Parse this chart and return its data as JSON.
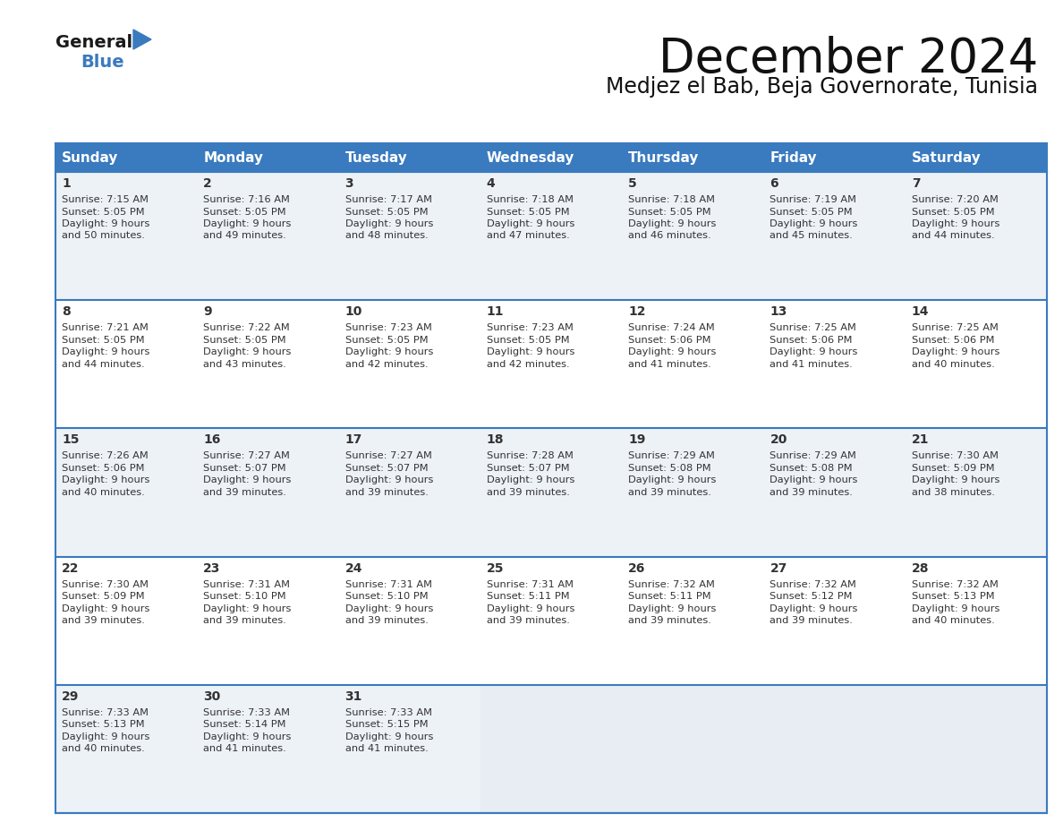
{
  "title": "December 2024",
  "subtitle": "Medjez el Bab, Beja Governorate, Tunisia",
  "header_bg": "#3a7abf",
  "header_text": "#ffffff",
  "days_of_week": [
    "Sunday",
    "Monday",
    "Tuesday",
    "Wednesday",
    "Thursday",
    "Friday",
    "Saturday"
  ],
  "row_bg_even": "#edf2f7",
  "row_bg_odd": "#ffffff",
  "grid_line_color": "#3a7abf",
  "text_color": "#333333",
  "logo_general_color": "#1a1a1a",
  "logo_blue_color": "#3a7abf",
  "cal_data": [
    {
      "day": 1,
      "col": 0,
      "row": 0,
      "sunrise": "7:15 AM",
      "sunset": "5:05 PM",
      "dl_minutes": "50"
    },
    {
      "day": 2,
      "col": 1,
      "row": 0,
      "sunrise": "7:16 AM",
      "sunset": "5:05 PM",
      "dl_minutes": "49"
    },
    {
      "day": 3,
      "col": 2,
      "row": 0,
      "sunrise": "7:17 AM",
      "sunset": "5:05 PM",
      "dl_minutes": "48"
    },
    {
      "day": 4,
      "col": 3,
      "row": 0,
      "sunrise": "7:18 AM",
      "sunset": "5:05 PM",
      "dl_minutes": "47"
    },
    {
      "day": 5,
      "col": 4,
      "row": 0,
      "sunrise": "7:18 AM",
      "sunset": "5:05 PM",
      "dl_minutes": "46"
    },
    {
      "day": 6,
      "col": 5,
      "row": 0,
      "sunrise": "7:19 AM",
      "sunset": "5:05 PM",
      "dl_minutes": "45"
    },
    {
      "day": 7,
      "col": 6,
      "row": 0,
      "sunrise": "7:20 AM",
      "sunset": "5:05 PM",
      "dl_minutes": "44"
    },
    {
      "day": 8,
      "col": 0,
      "row": 1,
      "sunrise": "7:21 AM",
      "sunset": "5:05 PM",
      "dl_minutes": "44"
    },
    {
      "day": 9,
      "col": 1,
      "row": 1,
      "sunrise": "7:22 AM",
      "sunset": "5:05 PM",
      "dl_minutes": "43"
    },
    {
      "day": 10,
      "col": 2,
      "row": 1,
      "sunrise": "7:23 AM",
      "sunset": "5:05 PM",
      "dl_minutes": "42"
    },
    {
      "day": 11,
      "col": 3,
      "row": 1,
      "sunrise": "7:23 AM",
      "sunset": "5:05 PM",
      "dl_minutes": "42"
    },
    {
      "day": 12,
      "col": 4,
      "row": 1,
      "sunrise": "7:24 AM",
      "sunset": "5:06 PM",
      "dl_minutes": "41"
    },
    {
      "day": 13,
      "col": 5,
      "row": 1,
      "sunrise": "7:25 AM",
      "sunset": "5:06 PM",
      "dl_minutes": "41"
    },
    {
      "day": 14,
      "col": 6,
      "row": 1,
      "sunrise": "7:25 AM",
      "sunset": "5:06 PM",
      "dl_minutes": "40"
    },
    {
      "day": 15,
      "col": 0,
      "row": 2,
      "sunrise": "7:26 AM",
      "sunset": "5:06 PM",
      "dl_minutes": "40"
    },
    {
      "day": 16,
      "col": 1,
      "row": 2,
      "sunrise": "7:27 AM",
      "sunset": "5:07 PM",
      "dl_minutes": "39"
    },
    {
      "day": 17,
      "col": 2,
      "row": 2,
      "sunrise": "7:27 AM",
      "sunset": "5:07 PM",
      "dl_minutes": "39"
    },
    {
      "day": 18,
      "col": 3,
      "row": 2,
      "sunrise": "7:28 AM",
      "sunset": "5:07 PM",
      "dl_minutes": "39"
    },
    {
      "day": 19,
      "col": 4,
      "row": 2,
      "sunrise": "7:29 AM",
      "sunset": "5:08 PM",
      "dl_minutes": "39"
    },
    {
      "day": 20,
      "col": 5,
      "row": 2,
      "sunrise": "7:29 AM",
      "sunset": "5:08 PM",
      "dl_minutes": "39"
    },
    {
      "day": 21,
      "col": 6,
      "row": 2,
      "sunrise": "7:30 AM",
      "sunset": "5:09 PM",
      "dl_minutes": "38"
    },
    {
      "day": 22,
      "col": 0,
      "row": 3,
      "sunrise": "7:30 AM",
      "sunset": "5:09 PM",
      "dl_minutes": "39"
    },
    {
      "day": 23,
      "col": 1,
      "row": 3,
      "sunrise": "7:31 AM",
      "sunset": "5:10 PM",
      "dl_minutes": "39"
    },
    {
      "day": 24,
      "col": 2,
      "row": 3,
      "sunrise": "7:31 AM",
      "sunset": "5:10 PM",
      "dl_minutes": "39"
    },
    {
      "day": 25,
      "col": 3,
      "row": 3,
      "sunrise": "7:31 AM",
      "sunset": "5:11 PM",
      "dl_minutes": "39"
    },
    {
      "day": 26,
      "col": 4,
      "row": 3,
      "sunrise": "7:32 AM",
      "sunset": "5:11 PM",
      "dl_minutes": "39"
    },
    {
      "day": 27,
      "col": 5,
      "row": 3,
      "sunrise": "7:32 AM",
      "sunset": "5:12 PM",
      "dl_minutes": "39"
    },
    {
      "day": 28,
      "col": 6,
      "row": 3,
      "sunrise": "7:32 AM",
      "sunset": "5:13 PM",
      "dl_minutes": "40"
    },
    {
      "day": 29,
      "col": 0,
      "row": 4,
      "sunrise": "7:33 AM",
      "sunset": "5:13 PM",
      "dl_minutes": "40"
    },
    {
      "day": 30,
      "col": 1,
      "row": 4,
      "sunrise": "7:33 AM",
      "sunset": "5:14 PM",
      "dl_minutes": "41"
    },
    {
      "day": 31,
      "col": 2,
      "row": 4,
      "sunrise": "7:33 AM",
      "sunset": "5:15 PM",
      "dl_minutes": "41"
    }
  ],
  "num_rows": 5,
  "num_cols": 7
}
